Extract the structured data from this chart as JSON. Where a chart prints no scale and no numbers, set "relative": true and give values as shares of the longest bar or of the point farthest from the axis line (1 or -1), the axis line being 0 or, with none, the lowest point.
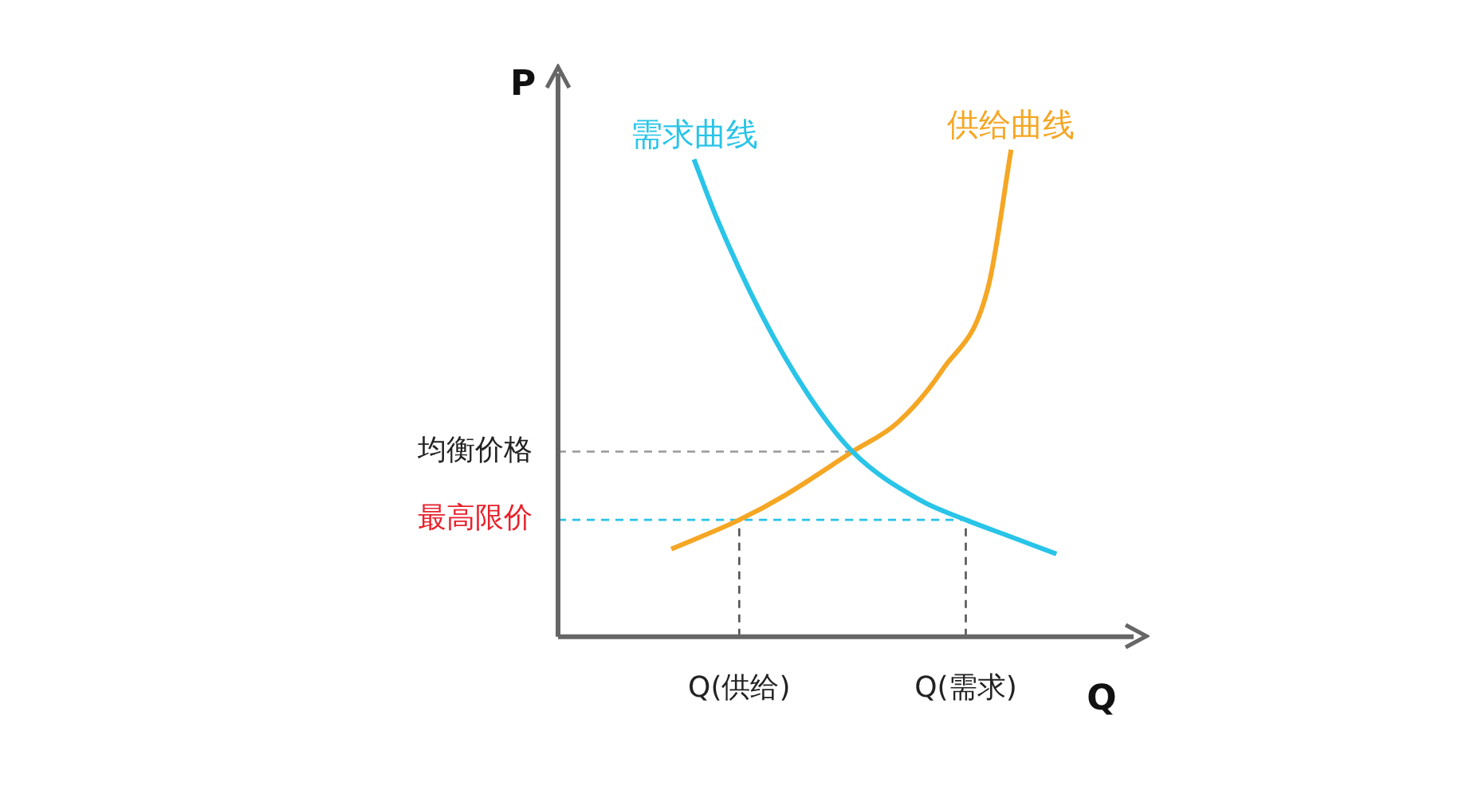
{
  "chart_data": {
    "type": "line",
    "relative": true,
    "xlabel": "Q",
    "ylabel": "P",
    "categories": [
      null,
      null,
      null,
      null,
      null,
      null,
      null,
      null,
      "Q(供给)",
      null,
      null,
      null,
      null,
      null,
      null,
      null,
      null,
      null,
      "Q(需求)",
      null,
      null,
      null,
      null,
      null,
      null
    ],
    "grid": false,
    "legend": false,
    "marker": "none",
    "tick_labels": "x",
    "series": [
      {
        "name": "需求曲线",
        "color": "#29c4e8",
        "values": [
          null,
          null,
          null,
          null,
          null,
          null,
          0.98,
          0.86,
          null,
          0.66,
          null,
          0.5,
          null,
          0.38,
          null,
          null,
          0.28,
          null,
          0.24,
          null,
          0.205,
          null,
          0.17,
          null,
          null
        ]
      },
      {
        "name": "供给曲线",
        "color": "#f5a623",
        "values": [
          null,
          null,
          null,
          null,
          null,
          0.18,
          null,
          null,
          0.24,
          null,
          0.29,
          null,
          null,
          0.38,
          null,
          0.44,
          null,
          0.55,
          null,
          0.72,
          1.0,
          null,
          null,
          null,
          null
        ]
      },
      {
        "color": "#999999",
        "line_style": "dashed",
        "values": [
          0.38,
          0.38,
          0.38,
          0.38,
          0.38,
          0.38,
          0.38,
          0.38,
          0.38,
          0.38,
          0.38,
          0.38,
          0.38,
          0.38,
          null,
          null,
          null,
          null,
          null,
          null,
          null,
          null,
          null,
          null,
          null
        ]
      },
      {
        "color": "#29c4e8",
        "line_style": "dashed",
        "values": [
          0.24,
          0.24,
          0.24,
          0.24,
          0.24,
          0.24,
          0.24,
          0.24,
          0.24,
          0.24,
          0.24,
          0.24,
          0.24,
          0.24,
          0.24,
          0.24,
          0.24,
          0.24,
          0.24,
          null,
          null,
          null,
          null,
          null,
          null
        ]
      }
    ],
    "ref_lines": [
      {
        "axis": "x",
        "value": "Q(供给)",
        "color": "#555555",
        "line_style": "dashed"
      },
      {
        "axis": "x",
        "value": "Q(需求)",
        "color": "#555555",
        "line_style": "dashed"
      }
    ],
    "annotations": [
      "均衡价格",
      "最高限价"
    ]
  }
}
